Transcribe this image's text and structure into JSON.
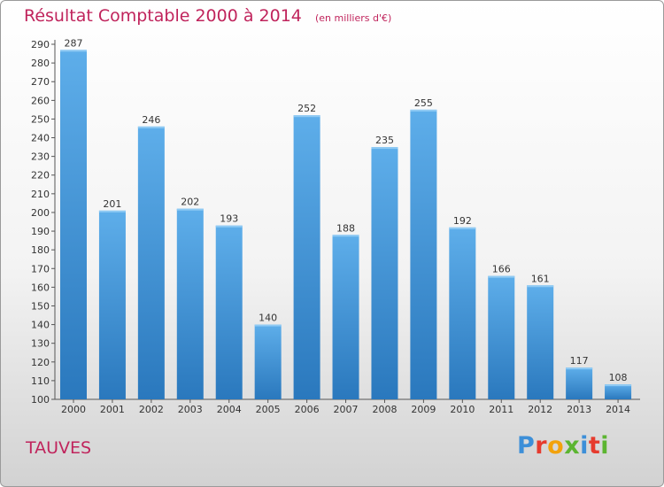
{
  "header": {
    "title": "Résultat Comptable 2000 à 2014",
    "unit": "(en milliers d'€)"
  },
  "footer": {
    "commune": "TAUVES",
    "logo": "Proxiti"
  },
  "colors": {
    "title": "#c0245c",
    "bar_light": "#5eaeea",
    "bar_dark": "#2a78bd"
  },
  "chart_data": {
    "type": "bar",
    "title": "Résultat Comptable 2000 à 2014",
    "ylabel": "en milliers d'€",
    "xlabel": "",
    "categories": [
      "2000",
      "2001",
      "2002",
      "2003",
      "2004",
      "2005",
      "2006",
      "2007",
      "2008",
      "2009",
      "2010",
      "2011",
      "2012",
      "2013",
      "2014"
    ],
    "values": [
      287,
      201,
      246,
      202,
      193,
      140,
      252,
      188,
      235,
      255,
      192,
      166,
      161,
      117,
      108
    ],
    "ylim": [
      100,
      290
    ],
    "ytick_step": 10,
    "grid": false,
    "legend": "none"
  }
}
